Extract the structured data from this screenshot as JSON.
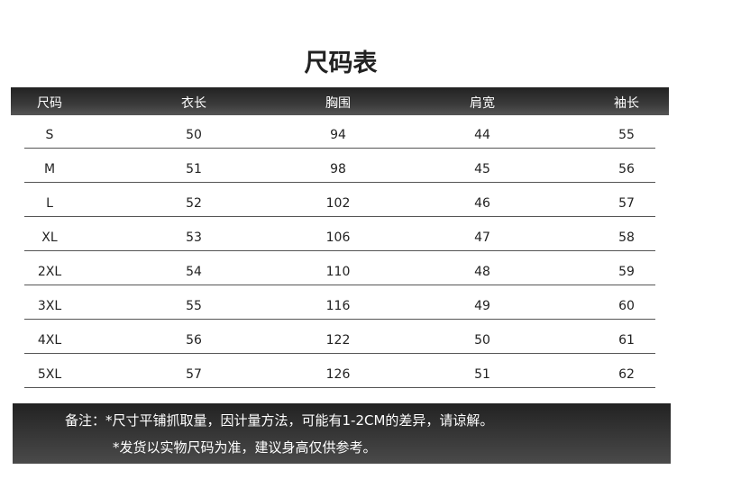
{
  "title": "尺码表",
  "columns": [
    "尺码",
    "衣长",
    "胸围",
    "肩宽",
    "袖长"
  ],
  "rows": [
    [
      "S",
      "50",
      "94",
      "44",
      "55"
    ],
    [
      "M",
      "51",
      "98",
      "45",
      "56"
    ],
    [
      "L",
      "52",
      "102",
      "46",
      "57"
    ],
    [
      "XL",
      "53",
      "106",
      "47",
      "58"
    ],
    [
      "2XL",
      "54",
      "110",
      "48",
      "59"
    ],
    [
      "3XL",
      "55",
      "116",
      "49",
      "60"
    ],
    [
      "4XL",
      "56",
      "122",
      "50",
      "61"
    ],
    [
      "5XL",
      "57",
      "126",
      "51",
      "62"
    ]
  ],
  "notes": [
    "备注：*尺寸平铺抓取量，因计量方法，可能有1-2CM的差异，请谅解。",
    "*发货以实物尺码为准，建议身高仅供参考。"
  ]
}
